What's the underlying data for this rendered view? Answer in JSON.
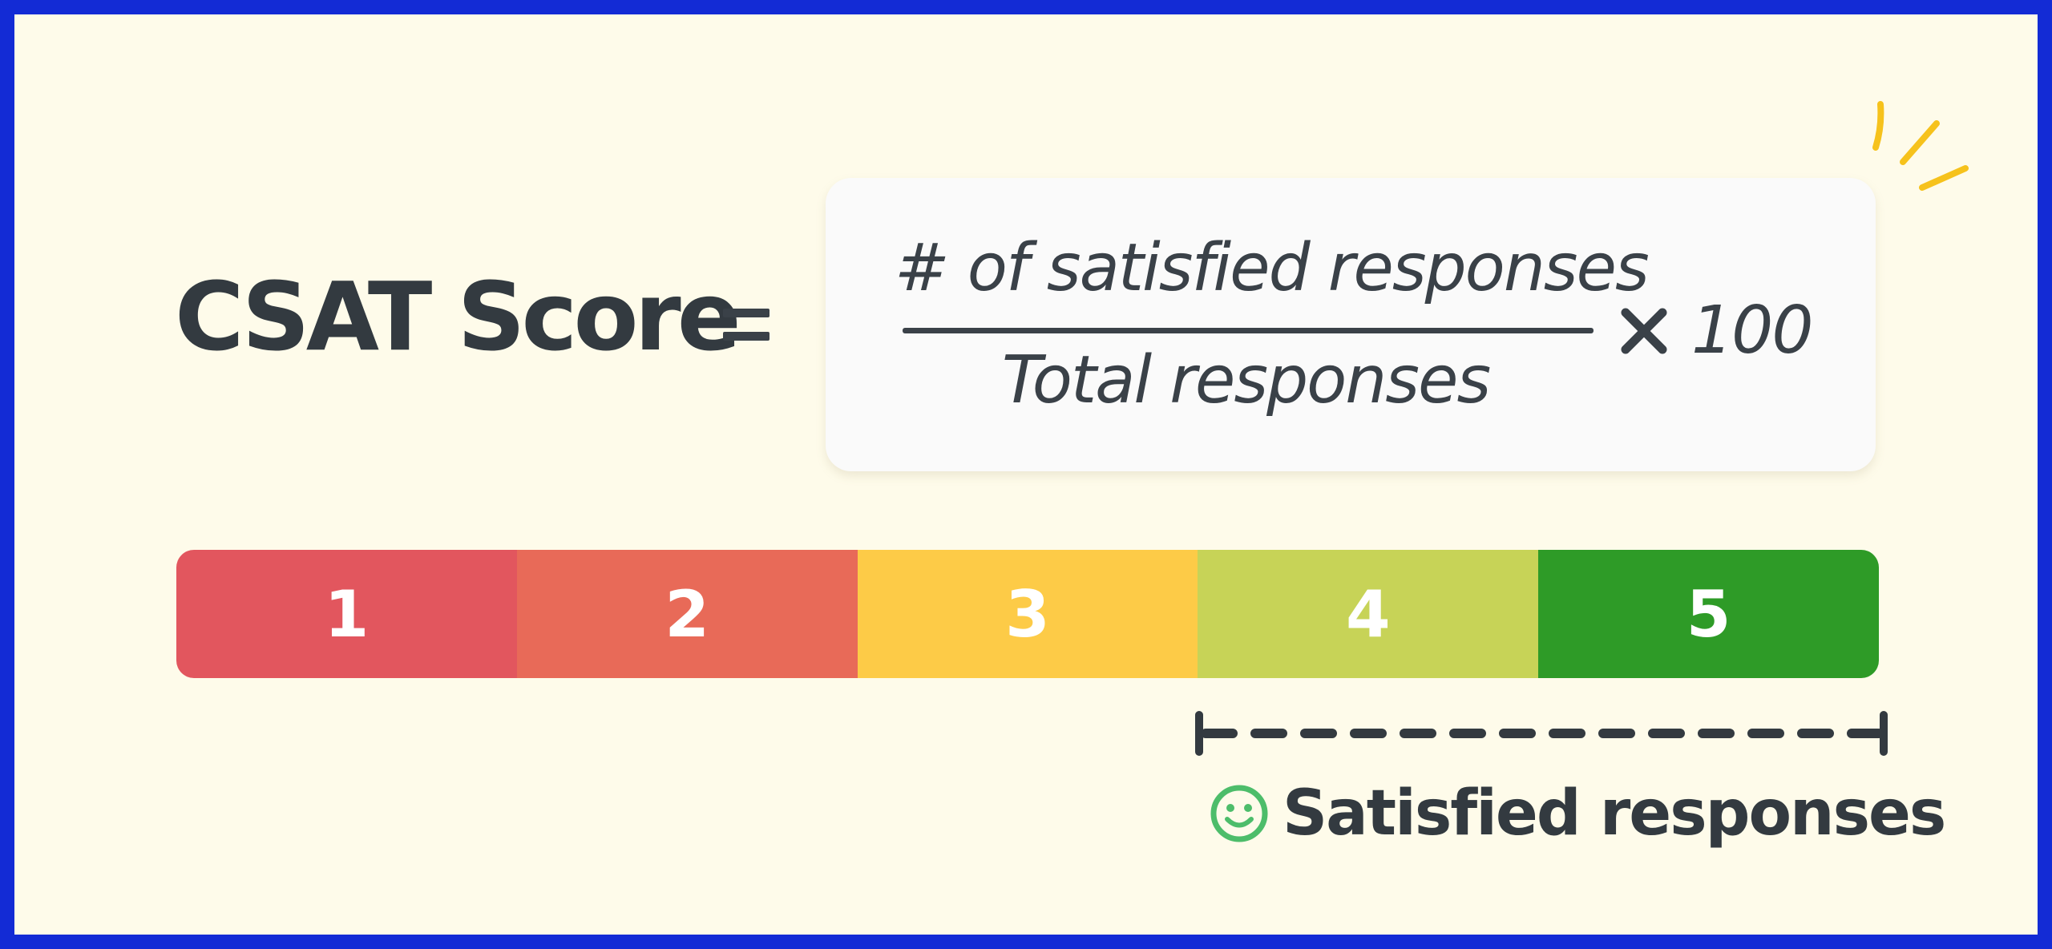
{
  "title": "CSAT Score",
  "equals_icon": "equals-sign",
  "formula": {
    "numerator": "# of satisfied responses",
    "denominator": "Total responses",
    "operator_icon": "multiply-icon",
    "multiplier": "100"
  },
  "scale": {
    "segments": [
      {
        "label": "1",
        "color": "#e2565e"
      },
      {
        "label": "2",
        "color": "#e86a58"
      },
      {
        "label": "3",
        "color": "#fdcb47"
      },
      {
        "label": "4",
        "color": "#c7d357"
      },
      {
        "label": "5",
        "color": "#2e9b27"
      }
    ]
  },
  "satisfied": {
    "label": "Satisfied responses",
    "icon": "smiley-icon",
    "range": [
      "4",
      "5"
    ]
  },
  "colors": {
    "frame": "#132bd5",
    "background": "#fefbea",
    "text": "#333a40",
    "sparkle": "#f6c21c",
    "smiley": "#4dbd6a"
  }
}
